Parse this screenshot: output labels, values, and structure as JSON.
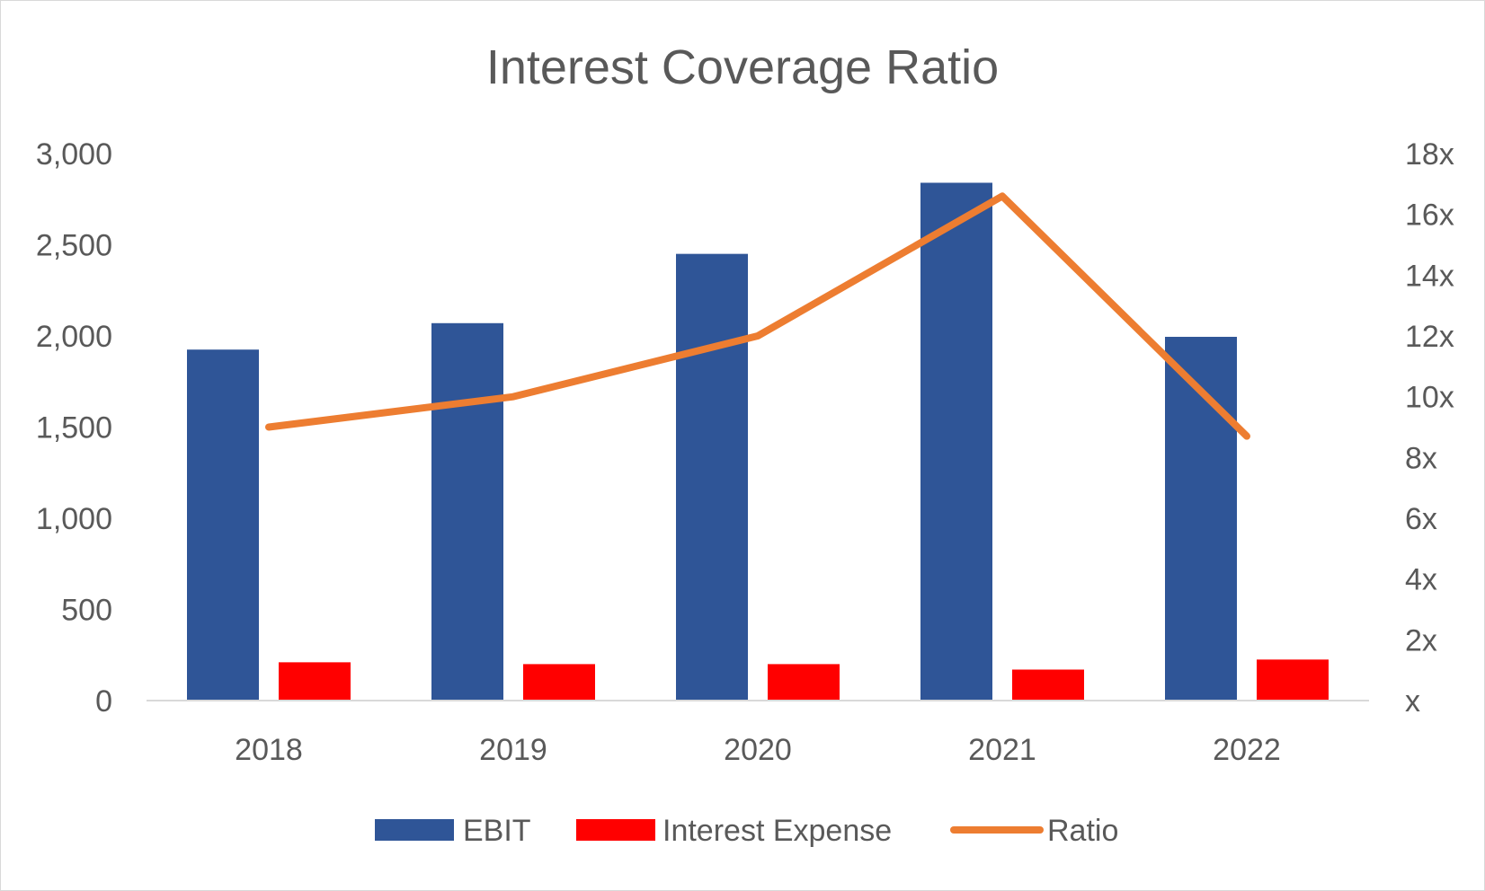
{
  "chart_data": {
    "type": "bar",
    "title": "Interest Coverage Ratio",
    "categories": [
      "2018",
      "2019",
      "2020",
      "2021",
      "2022"
    ],
    "ylim": [
      0,
      3000
    ],
    "y_ticks": [
      "0",
      "500",
      "1,000",
      "1,500",
      "2,000",
      "2,500",
      "3,000"
    ],
    "y2lim": [
      0,
      18
    ],
    "y2_ticks": [
      "x",
      "2x",
      "4x",
      "6x",
      "8x",
      "10x",
      "12x",
      "14x",
      "16x",
      "18x"
    ],
    "grid": false,
    "legend_position": "bottom",
    "series": [
      {
        "name": "EBIT",
        "type": "bar",
        "axis": "left",
        "color": "#2F5597",
        "values": [
          1925,
          2070,
          2450,
          2840,
          1995
        ]
      },
      {
        "name": "Interest Expense",
        "type": "bar",
        "axis": "left",
        "color": "#FF0000",
        "values": [
          210,
          200,
          200,
          170,
          225
        ]
      },
      {
        "name": "Ratio",
        "type": "line",
        "axis": "right",
        "color": "#ED7D31",
        "values": [
          9.0,
          10.0,
          12.0,
          16.6,
          8.7
        ]
      }
    ]
  }
}
